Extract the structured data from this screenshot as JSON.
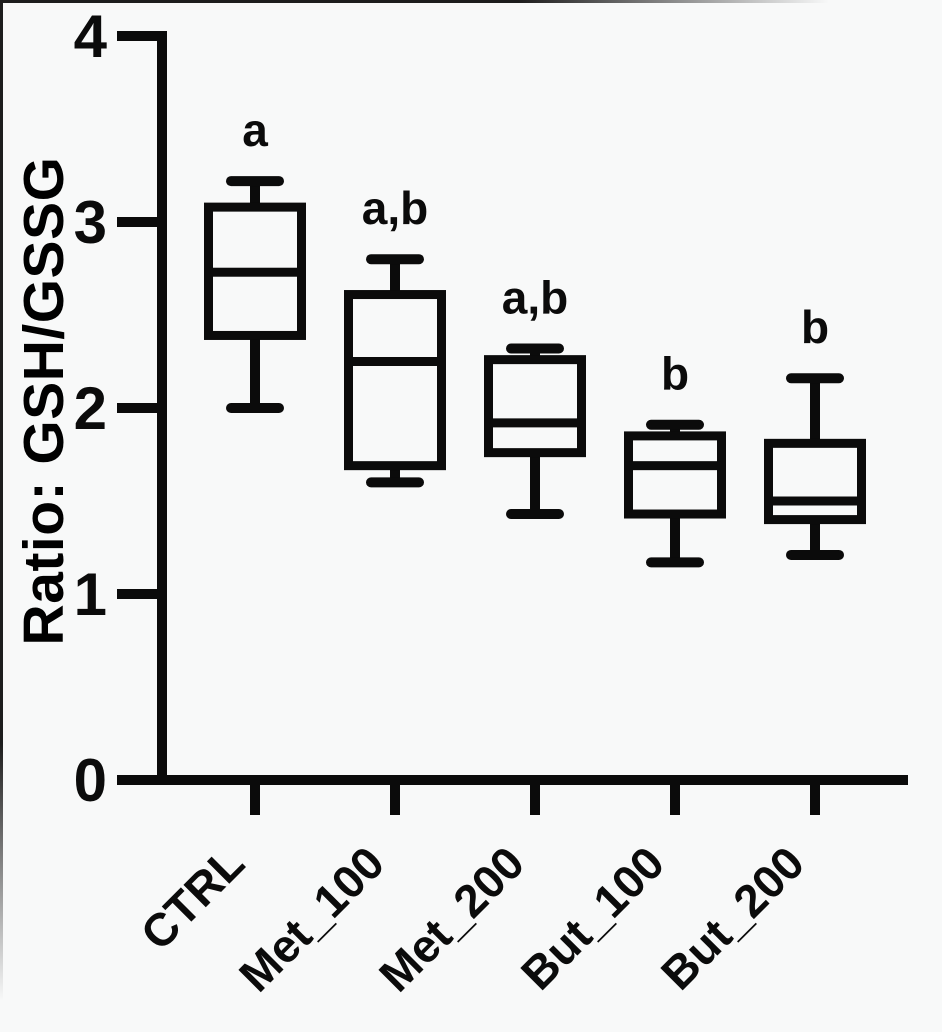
{
  "figure": {
    "background": "#f8f9f9",
    "ink": "#0b0b0b"
  },
  "chart_data": {
    "type": "boxplot",
    "title": "",
    "xlabel": "",
    "ylabel": "Ratio: GSH/GSSG",
    "ylim": [
      0,
      4
    ],
    "yticks": [
      0,
      1,
      2,
      3,
      4
    ],
    "grid": false,
    "legend": false,
    "box_style": "hollow, black outline, whisker caps, no fill",
    "categories": [
      "CTRL",
      "Met_100",
      "Met_200",
      "But_100",
      "But_200"
    ],
    "series": [
      {
        "category": "CTRL",
        "min": 2.0,
        "q1": 2.39,
        "median": 2.73,
        "q3": 3.08,
        "max": 3.22,
        "significance": "a"
      },
      {
        "category": "Met_100",
        "min": 1.6,
        "q1": 1.69,
        "median": 2.25,
        "q3": 2.61,
        "max": 2.8,
        "significance": "a,b"
      },
      {
        "category": "Met_200",
        "min": 1.43,
        "q1": 1.76,
        "median": 1.92,
        "q3": 2.26,
        "max": 2.32,
        "significance": "a,b"
      },
      {
        "category": "But_100",
        "min": 1.17,
        "q1": 1.43,
        "median": 1.69,
        "q3": 1.85,
        "max": 1.91,
        "significance": "b"
      },
      {
        "category": "But_200",
        "min": 1.21,
        "q1": 1.4,
        "median": 1.5,
        "q3": 1.81,
        "max": 2.16,
        "significance": "b"
      }
    ]
  }
}
